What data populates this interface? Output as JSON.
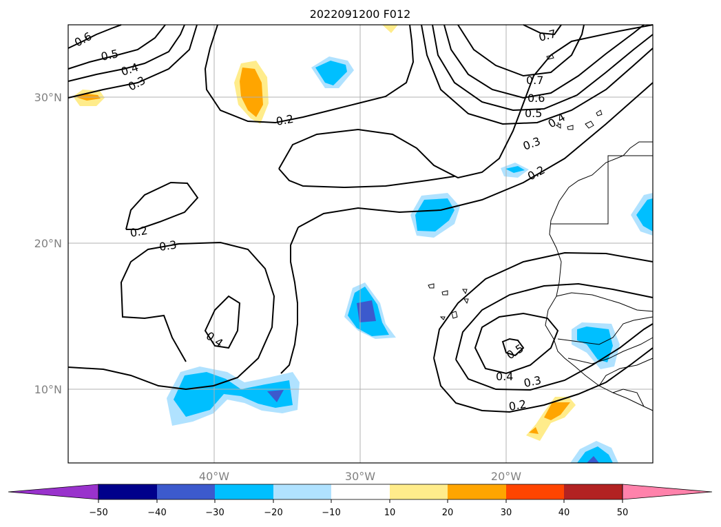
{
  "title": "2022091200 F012",
  "lat_labels": [
    "30°N",
    "20°N",
    "10°N"
  ],
  "lon_labels": [
    "40°W",
    "30°W",
    "20°W"
  ],
  "colorbar": {
    "ticks": [
      "−50",
      "−40",
      "−30",
      "−20",
      "−10",
      "10",
      "20",
      "30",
      "40",
      "50"
    ],
    "colors": [
      "#9932cc",
      "#00008b",
      "#3c5acd",
      "#00bfff",
      "#b0e2ff",
      "#ffffff",
      "#ffec8b",
      "#ffa500",
      "#ff4500",
      "#b22222",
      "#ff82ab"
    ]
  },
  "contour_labels": {
    "c1": "0.6",
    "c2": "0.5",
    "c3": "0.4",
    "c4": "0.3",
    "c5": "0.2",
    "c6": "0.7",
    "c7": "0.7",
    "c8": "0.6",
    "c9": "0.5",
    "c10": "0.4",
    "c11": "0.3",
    "c12": "0.2",
    "c13": "0.2",
    "c14": "0.3",
    "c15": "0.4",
    "c16": "0.5",
    "c17": "0.4",
    "c18": "0.3",
    "c19": "0.2"
  }
}
